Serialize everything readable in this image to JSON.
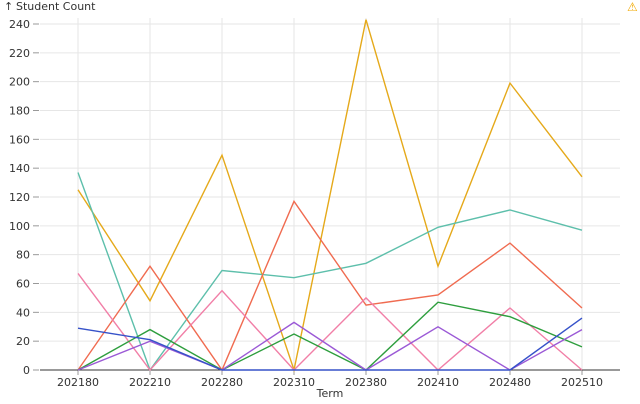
{
  "header": {
    "sort_arrow": "↑",
    "warning_icon": "⚠",
    "warning_color": "#f2a900"
  },
  "chart_data": {
    "type": "line",
    "ylabel": "Student Count",
    "xlabel": "Term",
    "categories": [
      "202180",
      "202210",
      "202280",
      "202310",
      "202380",
      "202410",
      "202480",
      "202510"
    ],
    "ylim": [
      0,
      250
    ],
    "yticks": [
      0,
      20,
      40,
      60,
      80,
      100,
      120,
      140,
      160,
      180,
      200,
      220,
      240
    ],
    "grid": true,
    "legend": "none",
    "series": [
      {
        "color": "#e5a91a",
        "values": [
          125,
          48,
          149,
          0,
          243,
          72,
          199,
          134
        ]
      },
      {
        "color": "#5dbfab",
        "values": [
          137,
          0,
          69,
          64,
          74,
          99,
          111,
          97
        ]
      },
      {
        "color": "#f06b50",
        "values": [
          0,
          72,
          0,
          117,
          45,
          52,
          88,
          43
        ]
      },
      {
        "color": "#f17fa7",
        "values": [
          67,
          0,
          55,
          0,
          50,
          0,
          43,
          0
        ]
      },
      {
        "color": "#2e9e3e",
        "values": [
          0,
          28,
          0,
          25,
          0,
          47,
          37,
          16
        ]
      },
      {
        "color": "#9b59d6",
        "values": [
          0,
          20,
          0,
          33,
          0,
          30,
          0,
          28
        ]
      },
      {
        "color": "#3652c9",
        "values": [
          29,
          21,
          0,
          0,
          0,
          0,
          0,
          36
        ]
      }
    ]
  }
}
